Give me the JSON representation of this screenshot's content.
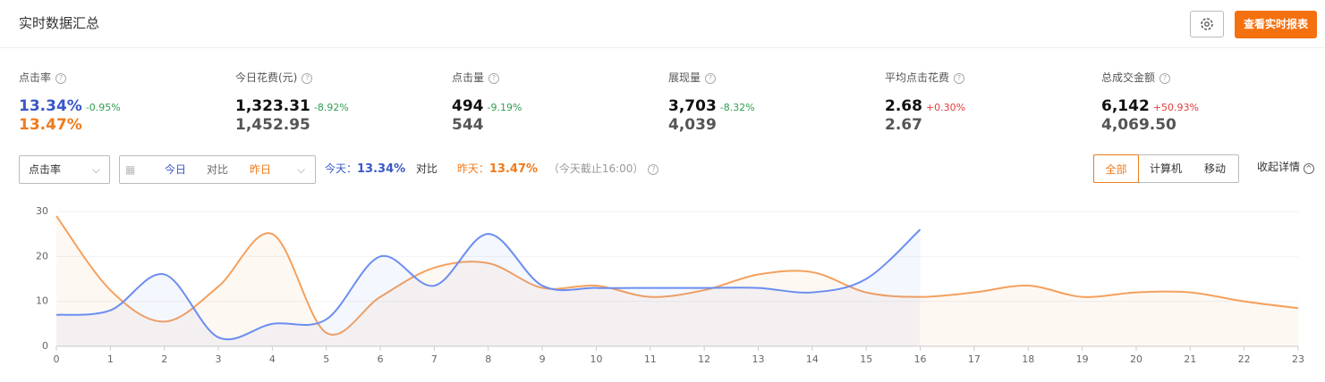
{
  "header": {
    "title": "实时数据汇总",
    "report_button": "查看实时报表"
  },
  "metrics": [
    {
      "label": "点击率",
      "today": "13.34%",
      "change": "-0.95%",
      "yesterday": "13.47%"
    },
    {
      "label": "今日花费(元)",
      "today": "1,323.31",
      "change": "-8.92%",
      "yesterday": "1,452.95"
    },
    {
      "label": "点击量",
      "today": "494",
      "change": "-9.19%",
      "yesterday": "544"
    },
    {
      "label": "展现量",
      "today": "3,703",
      "change": "-8.32%",
      "yesterday": "4,039"
    },
    {
      "label": "平均点击花费",
      "today": "2.68",
      "change": "+0.30%",
      "yesterday": "2.67"
    },
    {
      "label": "总成交金额",
      "today": "6,142",
      "change": "+50.93%",
      "yesterday": "4,069.50"
    }
  ],
  "controls": {
    "metric_select": "点击率",
    "date_today": "今日",
    "date_compare": "对比",
    "date_yesterday": "昨日",
    "summary_today_label": "今天：",
    "summary_today_value": "13.34%",
    "summary_compare": "对比",
    "summary_yesterday_label": "昨天：",
    "summary_yesterday_value": "13.47%",
    "summary_note": "（今天截止16:00）",
    "tabs": [
      "全部",
      "计算机",
      "移动"
    ],
    "collapse": "收起详情"
  },
  "chart_data": {
    "type": "line",
    "x": [
      0,
      1,
      2,
      3,
      4,
      5,
      6,
      7,
      8,
      9,
      10,
      11,
      12,
      13,
      14,
      15,
      16,
      17,
      18,
      19,
      20,
      21,
      22,
      23
    ],
    "series": [
      {
        "color": "#6b8ef0",
        "values": [
          7,
          8,
          16,
          2,
          5,
          6,
          20,
          13.5,
          25,
          13.5,
          13,
          13,
          13,
          13,
          12,
          15,
          26,
          null,
          null,
          null,
          null,
          null,
          null,
          null
        ]
      },
      {
        "color": "#f5a05c",
        "values": [
          29,
          12.5,
          5.5,
          13.3,
          25,
          3,
          11,
          17.5,
          18.5,
          13,
          13.5,
          11,
          12.5,
          16,
          16.5,
          12,
          11,
          12,
          13.5,
          11,
          12,
          12,
          10,
          8.5
        ]
      }
    ],
    "xlim": [
      0,
      23
    ],
    "xticks": [
      0,
      1,
      2,
      3,
      4,
      5,
      6,
      7,
      8,
      9,
      10,
      11,
      12,
      13,
      14,
      15,
      16,
      17,
      18,
      19,
      20,
      21,
      22,
      23
    ],
    "ylim": [
      0,
      30
    ],
    "yticks": [
      0,
      10,
      20,
      30
    ],
    "grid": true
  }
}
